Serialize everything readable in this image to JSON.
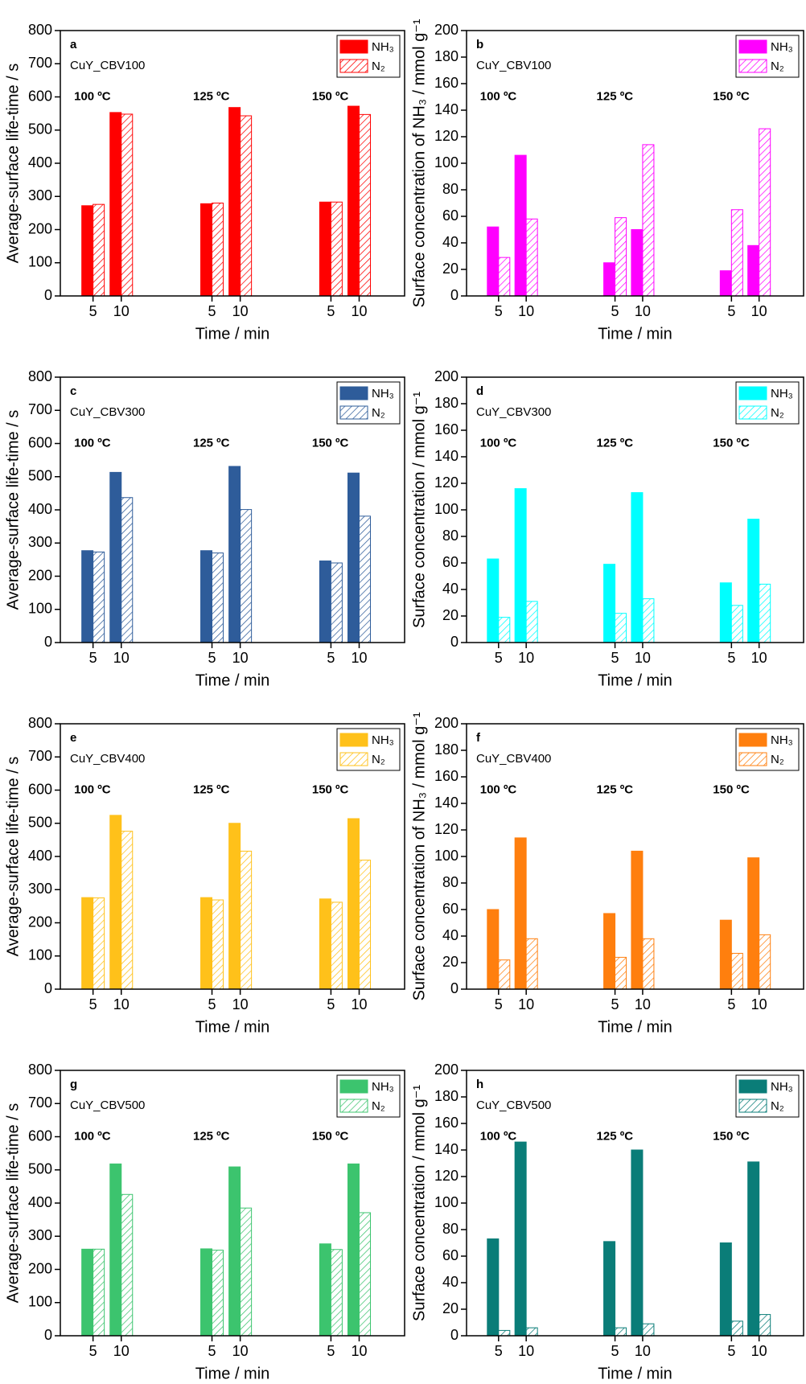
{
  "chart_data": [
    {
      "type": "bar",
      "panel": "a",
      "sample": "CuY_CBV100",
      "ylabel": "Average-surface life-time / s",
      "xlabel": "Time / min",
      "categories": [
        "5",
        "10",
        "5",
        "10",
        "5",
        "10"
      ],
      "groups": [
        "100 ºC",
        "125 ºC",
        "150 ºC"
      ],
      "series": [
        {
          "name": "NH₃",
          "color": "#ff0000",
          "pattern": "solid",
          "values": [
            272,
            553,
            278,
            568,
            283,
            572
          ]
        },
        {
          "name": "N₂",
          "color": "#ff0000",
          "pattern": "hatch",
          "values": [
            276,
            548,
            280,
            543,
            283,
            547
          ]
        }
      ],
      "ylim": [
        0,
        800
      ],
      "yticks": [
        0,
        100,
        200,
        300,
        400,
        500,
        600,
        700,
        800
      ],
      "legend": "upper right"
    },
    {
      "type": "bar",
      "panel": "b",
      "sample": "CuY_CBV100",
      "ylabel": "Surface concentration of NH₃ / mmol g⁻¹",
      "xlabel": "Time / min",
      "categories": [
        "5",
        "10",
        "5",
        "10",
        "5",
        "10"
      ],
      "groups": [
        "100 ºC",
        "125 ºC",
        "150 ºC"
      ],
      "series": [
        {
          "name": "NH₃",
          "color": "#ff00ff",
          "pattern": "solid",
          "values": [
            52,
            106,
            25,
            50,
            19,
            38
          ]
        },
        {
          "name": "N₂",
          "color": "#ff00ff",
          "pattern": "hatch",
          "values": [
            29,
            58,
            59,
            114,
            65,
            126
          ]
        }
      ],
      "ylim": [
        0,
        200
      ],
      "yticks": [
        0,
        20,
        40,
        60,
        80,
        100,
        120,
        140,
        160,
        180,
        200
      ],
      "legend": "upper right"
    },
    {
      "type": "bar",
      "panel": "c",
      "sample": "CuY_CBV300",
      "ylabel": "Average-surface life-time / s",
      "xlabel": "Time / min",
      "categories": [
        "5",
        "10",
        "5",
        "10",
        "5",
        "10"
      ],
      "groups": [
        "100 ºC",
        "125 ºC",
        "150 ºC"
      ],
      "series": [
        {
          "name": "NH₃",
          "color": "#2e5c9a",
          "pattern": "solid",
          "values": [
            277,
            513,
            277,
            531,
            246,
            511
          ]
        },
        {
          "name": "N₂",
          "color": "#2e5c9a",
          "pattern": "hatch",
          "values": [
            273,
            437,
            270,
            401,
            240,
            381
          ]
        }
      ],
      "ylim": [
        0,
        800
      ],
      "yticks": [
        0,
        100,
        200,
        300,
        400,
        500,
        600,
        700,
        800
      ],
      "legend": "upper right"
    },
    {
      "type": "bar",
      "panel": "d",
      "sample": "CuY_CBV300",
      "ylabel": "Surface concentration / mmol g⁻¹",
      "xlabel": "Time / min",
      "categories": [
        "5",
        "10",
        "5",
        "10",
        "5",
        "10"
      ],
      "groups": [
        "100 ºC",
        "125 ºC",
        "150 ºC"
      ],
      "series": [
        {
          "name": "NH₃",
          "color": "#00ffff",
          "pattern": "solid",
          "values": [
            63,
            116,
            59,
            113,
            45,
            93
          ]
        },
        {
          "name": "N₂",
          "color": "#00ffff",
          "pattern": "hatch",
          "values": [
            19,
            31,
            22,
            33,
            28,
            44
          ]
        }
      ],
      "ylim": [
        0,
        200
      ],
      "yticks": [
        0,
        20,
        40,
        60,
        80,
        100,
        120,
        140,
        160,
        180,
        200
      ],
      "legend": "upper right"
    },
    {
      "type": "bar",
      "panel": "e",
      "sample": "CuY_CBV400",
      "ylabel": "Average-surface life-time / s",
      "xlabel": "Time / min",
      "categories": [
        "5",
        "10",
        "5",
        "10",
        "5",
        "10"
      ],
      "groups": [
        "100 ºC",
        "125 ºC",
        "150 ºC"
      ],
      "series": [
        {
          "name": "NH₃",
          "color": "#ffc11a",
          "pattern": "solid",
          "values": [
            276,
            524,
            276,
            500,
            272,
            514
          ]
        },
        {
          "name": "N₂",
          "color": "#ffc11a",
          "pattern": "hatch",
          "values": [
            275,
            476,
            269,
            416,
            262,
            389
          ]
        }
      ],
      "ylim": [
        0,
        800
      ],
      "yticks": [
        0,
        100,
        200,
        300,
        400,
        500,
        600,
        700,
        800
      ],
      "legend": "upper right"
    },
    {
      "type": "bar",
      "panel": "f",
      "sample": "CuY_CBV400",
      "ylabel": "Surface concentration of NH₃ / mmol g⁻¹",
      "xlabel": "Time / min",
      "categories": [
        "5",
        "10",
        "5",
        "10",
        "5",
        "10"
      ],
      "groups": [
        "100 ºC",
        "125 ºC",
        "150 ºC"
      ],
      "series": [
        {
          "name": "NH₃",
          "color": "#ff7f0e",
          "pattern": "solid",
          "values": [
            60,
            114,
            57,
            104,
            52,
            99
          ]
        },
        {
          "name": "N₂",
          "color": "#ff7f0e",
          "pattern": "hatch",
          "values": [
            22,
            38,
            24,
            38,
            27,
            41
          ]
        }
      ],
      "ylim": [
        0,
        200
      ],
      "yticks": [
        0,
        20,
        40,
        60,
        80,
        100,
        120,
        140,
        160,
        180,
        200
      ],
      "legend": "upper right"
    },
    {
      "type": "bar",
      "panel": "g",
      "sample": "CuY_CBV500",
      "ylabel": "Average-surface life-time / s",
      "xlabel": "Time / min",
      "categories": [
        "5",
        "10",
        "5",
        "10",
        "5",
        "10"
      ],
      "groups": [
        "100 ºC",
        "125 ºC",
        "150 ºC"
      ],
      "series": [
        {
          "name": "NH₃",
          "color": "#3cc46e",
          "pattern": "solid",
          "values": [
            261,
            518,
            262,
            509,
            277,
            518
          ]
        },
        {
          "name": "N₂",
          "color": "#3cc46e",
          "pattern": "hatch",
          "values": [
            261,
            426,
            258,
            385,
            260,
            371
          ]
        }
      ],
      "ylim": [
        0,
        800
      ],
      "yticks": [
        0,
        100,
        200,
        300,
        400,
        500,
        600,
        700,
        800
      ],
      "legend": "upper right"
    },
    {
      "type": "bar",
      "panel": "h",
      "sample": "CuY_CBV500",
      "ylabel": "Surface concentration / mmol g⁻¹",
      "xlabel": "Time / min",
      "categories": [
        "5",
        "10",
        "5",
        "10",
        "5",
        "10"
      ],
      "groups": [
        "100 ºC",
        "125 ºC",
        "150 ºC"
      ],
      "series": [
        {
          "name": "NH₃",
          "color": "#0a7d78",
          "pattern": "solid",
          "values": [
            73,
            146,
            71,
            140,
            70,
            131
          ]
        },
        {
          "name": "N₂",
          "color": "#0a7d78",
          "pattern": "hatch",
          "values": [
            4,
            6,
            6,
            9,
            11,
            16
          ]
        }
      ],
      "ylim": [
        0,
        200
      ],
      "yticks": [
        0,
        20,
        40,
        60,
        80,
        100,
        120,
        140,
        160,
        180,
        200
      ],
      "legend": "upper right"
    }
  ]
}
